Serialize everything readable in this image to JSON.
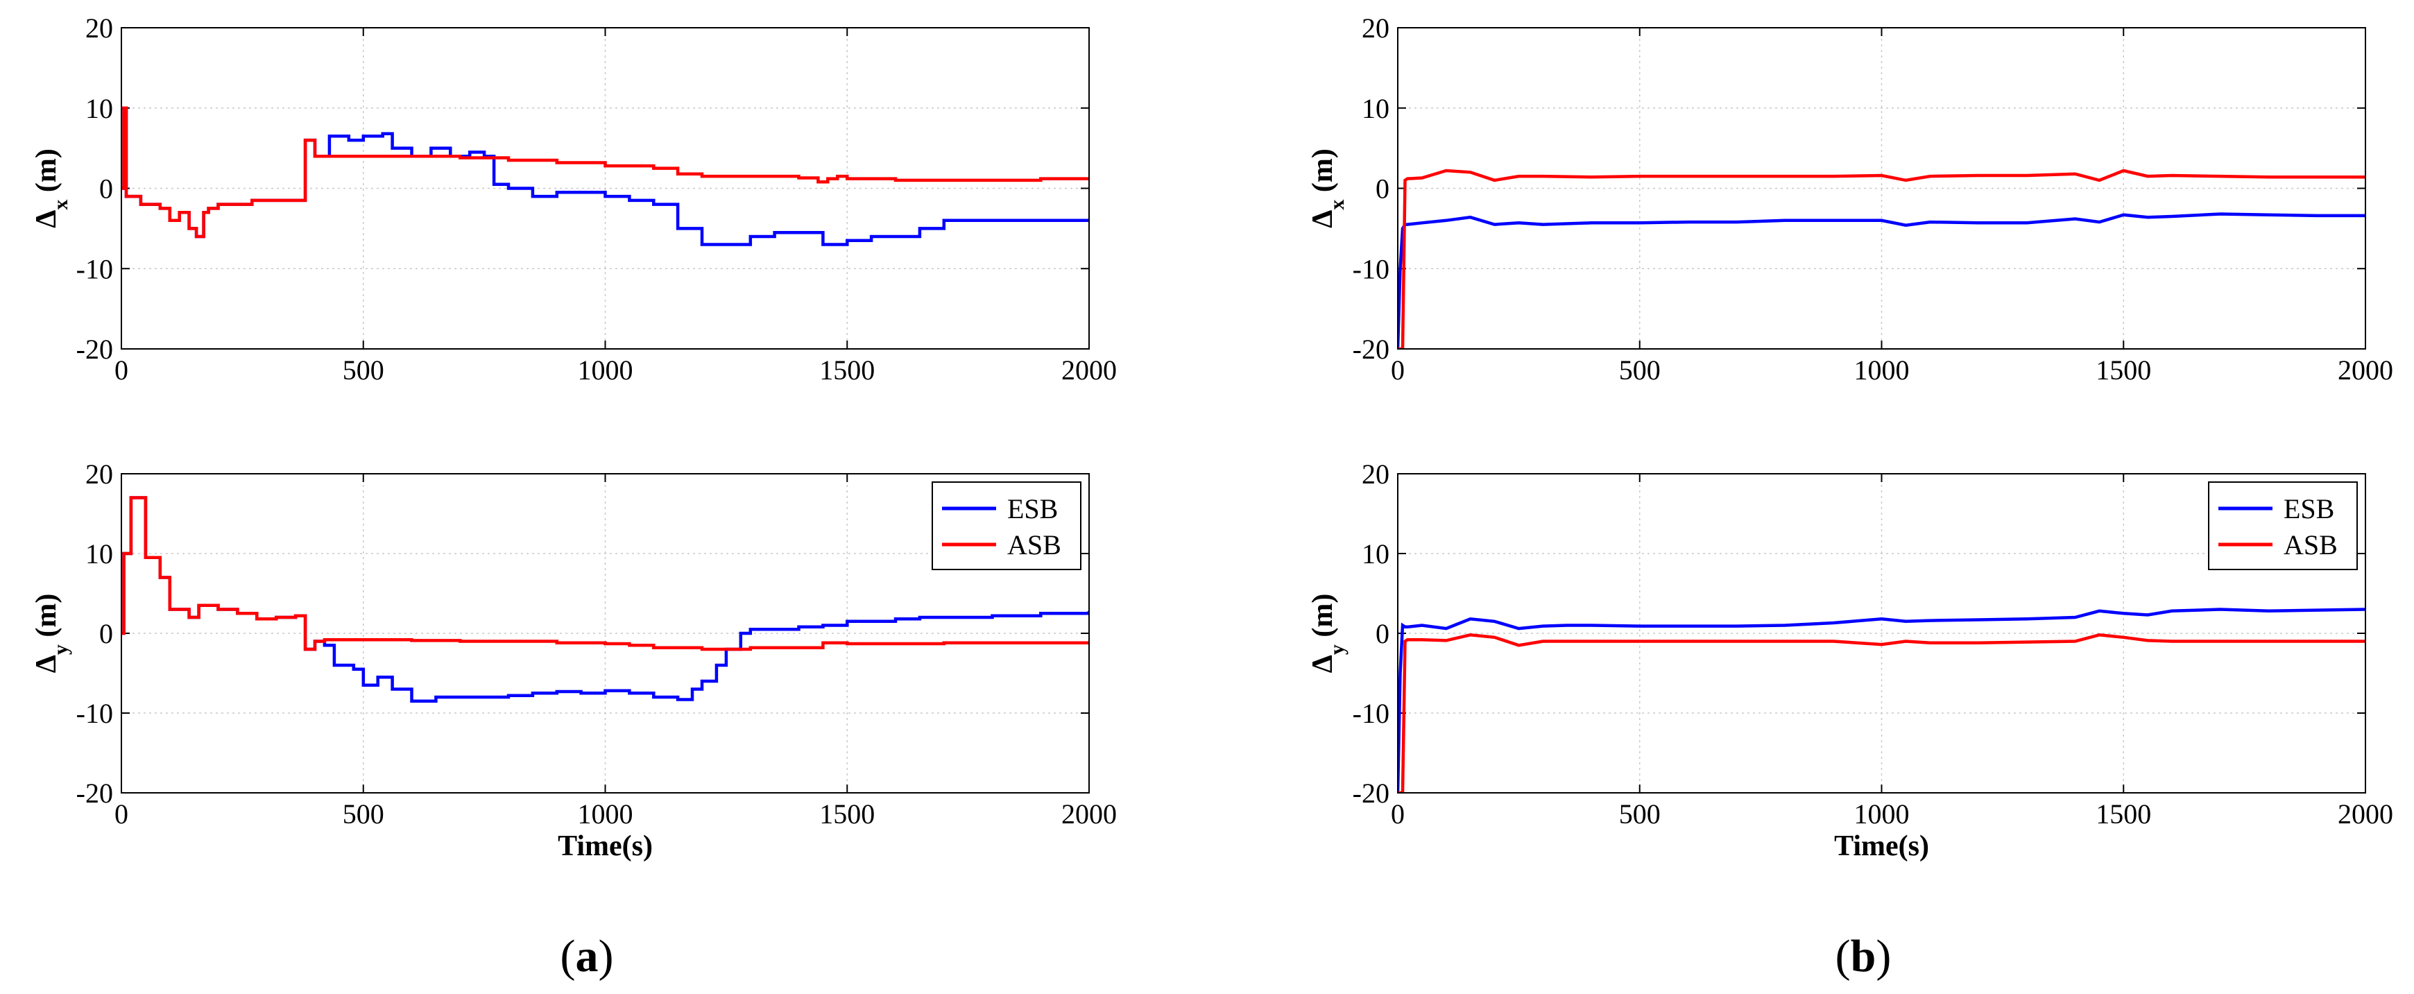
{
  "panels": [
    {
      "label_open": "(",
      "label_letter": "a",
      "label_close": ")"
    },
    {
      "label_open": "(",
      "label_letter": "b",
      "label_close": ")"
    }
  ],
  "colors": {
    "ESB": "#0000ff",
    "ASB": "#ff0000"
  },
  "chart_data": [
    {
      "id": "a-top",
      "type": "line",
      "ylabel": {
        "sym": "Δ",
        "sub": "x",
        "unit": " (m)"
      },
      "xlabel": "",
      "xlim": [
        0,
        2000
      ],
      "ylim": [
        -20,
        20
      ],
      "xticks": [
        "0",
        "500",
        "1000",
        "1500",
        "2000"
      ],
      "yticks": [
        "20",
        "10",
        "0",
        "-10",
        "-20"
      ],
      "xtick_values": [
        0,
        500,
        1000,
        1500,
        2000
      ],
      "ytick_values": [
        20,
        10,
        0,
        -10,
        -20
      ],
      "grid": true,
      "legend": null,
      "series": [
        {
          "name": "ESB",
          "step": true,
          "x": [
            0,
            5,
            10,
            20,
            40,
            60,
            80,
            100,
            120,
            140,
            155,
            170,
            180,
            200,
            240,
            270,
            300,
            340,
            380,
            400,
            430,
            470,
            500,
            540,
            560,
            600,
            640,
            680,
            720,
            750,
            770,
            800,
            850,
            900,
            950,
            1000,
            1050,
            1100,
            1150,
            1200,
            1250,
            1300,
            1350,
            1400,
            1450,
            1500,
            1550,
            1600,
            1650,
            1700,
            1800,
            1900,
            2000
          ],
          "y": [
            0,
            10,
            -1,
            -1,
            -2,
            -2,
            -2.5,
            -4,
            -3,
            -5,
            -6,
            -3,
            -2.5,
            -2,
            -2,
            -1.5,
            -1.5,
            -1.5,
            6,
            4,
            6.5,
            6,
            6.5,
            6.8,
            5,
            4,
            5,
            4,
            4.5,
            4,
            0.5,
            0,
            -1,
            -0.5,
            -0.5,
            -1,
            -1.5,
            -2,
            -5,
            -7,
            -7,
            -6,
            -5.5,
            -5.5,
            -7,
            -6.5,
            -6,
            -6,
            -5,
            -4,
            -4,
            -4,
            -3.8
          ]
        },
        {
          "name": "ASB",
          "step": true,
          "x": [
            0,
            5,
            10,
            20,
            40,
            60,
            80,
            100,
            120,
            140,
            155,
            170,
            180,
            200,
            240,
            270,
            300,
            340,
            380,
            400,
            430,
            500,
            600,
            700,
            800,
            900,
            1000,
            1100,
            1150,
            1200,
            1300,
            1400,
            1440,
            1460,
            1480,
            1500,
            1600,
            1700,
            1800,
            1900,
            2000
          ],
          "y": [
            0,
            10,
            -1,
            -1,
            -2,
            -2,
            -2.5,
            -4,
            -3,
            -5,
            -6,
            -3,
            -2.5,
            -2,
            -2,
            -1.5,
            -1.5,
            -1.5,
            6,
            4,
            4,
            4,
            4,
            3.8,
            3.5,
            3.2,
            2.8,
            2.5,
            1.8,
            1.5,
            1.5,
            1.3,
            0.8,
            1.2,
            1.5,
            1.2,
            1,
            1,
            1,
            1.2,
            1.3
          ]
        }
      ]
    },
    {
      "id": "a-bottom",
      "type": "line",
      "ylabel": {
        "sym": "Δ",
        "sub": "y",
        "unit": " (m)"
      },
      "xlabel": "Time(s)",
      "xlim": [
        0,
        2000
      ],
      "ylim": [
        -20,
        20
      ],
      "xticks": [
        "0",
        "500",
        "1000",
        "1500",
        "2000"
      ],
      "yticks": [
        "20",
        "10",
        "0",
        "-10",
        "-20"
      ],
      "xtick_values": [
        0,
        500,
        1000,
        1500,
        2000
      ],
      "ytick_values": [
        20,
        10,
        0,
        -10,
        -20
      ],
      "grid": true,
      "legend": "top-right",
      "series": [
        {
          "name": "ESB",
          "step": true,
          "x": [
            0,
            5,
            20,
            50,
            80,
            100,
            120,
            140,
            160,
            180,
            200,
            240,
            280,
            320,
            360,
            380,
            400,
            420,
            440,
            480,
            500,
            530,
            560,
            600,
            650,
            700,
            800,
            850,
            900,
            950,
            1000,
            1050,
            1100,
            1150,
            1180,
            1200,
            1230,
            1250,
            1280,
            1300,
            1350,
            1400,
            1450,
            1500,
            1550,
            1600,
            1650,
            1700,
            1800,
            1900,
            2000
          ],
          "y": [
            0,
            10,
            17,
            9.5,
            7,
            3,
            3,
            2,
            3.5,
            3.5,
            3,
            2.5,
            1.8,
            2,
            2.2,
            -2,
            -1,
            -1.5,
            -4,
            -4.5,
            -6.5,
            -5.5,
            -7,
            -8.5,
            -8,
            -8,
            -7.8,
            -7.5,
            -7.3,
            -7.5,
            -7.2,
            -7.5,
            -8,
            -8.3,
            -7,
            -6,
            -4,
            -2,
            0,
            0.5,
            0.5,
            0.8,
            1,
            1.5,
            1.5,
            1.8,
            2,
            2,
            2.2,
            2.5,
            2.8
          ]
        },
        {
          "name": "ASB",
          "step": true,
          "x": [
            0,
            5,
            20,
            50,
            80,
            100,
            120,
            140,
            160,
            180,
            200,
            240,
            280,
            320,
            360,
            380,
            400,
            420,
            500,
            600,
            700,
            800,
            900,
            1000,
            1050,
            1100,
            1150,
            1200,
            1300,
            1400,
            1450,
            1500,
            1600,
            1700,
            1800,
            1900,
            2000
          ],
          "y": [
            0,
            10,
            17,
            9.5,
            7,
            3,
            3,
            2,
            3.5,
            3.5,
            3,
            2.5,
            1.8,
            2,
            2.2,
            -2,
            -1,
            -0.8,
            -0.8,
            -0.9,
            -1,
            -1,
            -1.2,
            -1.3,
            -1.5,
            -1.8,
            -1.8,
            -2,
            -1.8,
            -1.8,
            -1.2,
            -1.3,
            -1.3,
            -1.2,
            -1.2,
            -1.2,
            -1.1
          ]
        }
      ]
    },
    {
      "id": "b-top",
      "type": "line",
      "ylabel": {
        "sym": "Δ",
        "sub": "x",
        "unit": " (m)"
      },
      "xlabel": "",
      "xlim": [
        0,
        2000
      ],
      "ylim": [
        -20,
        20
      ],
      "xticks": [
        "0",
        "500",
        "1000",
        "1500",
        "2000"
      ],
      "yticks": [
        "20",
        "10",
        "0",
        "-10",
        "-20"
      ],
      "xtick_values": [
        0,
        500,
        1000,
        1500,
        2000
      ],
      "ytick_values": [
        20,
        10,
        0,
        -10,
        -20
      ],
      "grid": true,
      "legend": null,
      "series": [
        {
          "name": "ESB",
          "step": false,
          "x": [
            0,
            5,
            10,
            15,
            20,
            50,
            100,
            150,
            200,
            250,
            300,
            400,
            500,
            600,
            700,
            800,
            900,
            1000,
            1050,
            1100,
            1200,
            1300,
            1400,
            1450,
            1500,
            1550,
            1600,
            1700,
            1800,
            1900,
            2000
          ],
          "y": [
            -20,
            -10,
            -5,
            -4.5,
            -4.5,
            -4.3,
            -4,
            -3.6,
            -4.5,
            -4.3,
            -4.5,
            -4.3,
            -4.3,
            -4.2,
            -4.2,
            -4,
            -4,
            -4,
            -4.6,
            -4.2,
            -4.3,
            -4.3,
            -3.8,
            -4.2,
            -3.3,
            -3.6,
            -3.5,
            -3.2,
            -3.3,
            -3.4,
            -3.4
          ]
        },
        {
          "name": "ASB",
          "step": false,
          "x": [
            0,
            5,
            10,
            15,
            20,
            50,
            100,
            150,
            200,
            250,
            300,
            400,
            500,
            600,
            700,
            800,
            900,
            1000,
            1050,
            1100,
            1200,
            1300,
            1400,
            1450,
            1500,
            1550,
            1600,
            1700,
            1800,
            1900,
            2000
          ],
          "y": [
            -20,
            -20,
            -20,
            1,
            1.2,
            1.3,
            2.2,
            2,
            1,
            1.5,
            1.5,
            1.4,
            1.5,
            1.5,
            1.5,
            1.5,
            1.5,
            1.6,
            1,
            1.5,
            1.6,
            1.6,
            1.8,
            1,
            2.2,
            1.5,
            1.6,
            1.5,
            1.4,
            1.4,
            1.4
          ]
        }
      ]
    },
    {
      "id": "b-bottom",
      "type": "line",
      "ylabel": {
        "sym": "Δ",
        "sub": "y",
        "unit": " (m)"
      },
      "xlabel": "Time(s)",
      "xlim": [
        0,
        2000
      ],
      "ylim": [
        -20,
        20
      ],
      "xticks": [
        "0",
        "500",
        "1000",
        "1500",
        "2000"
      ],
      "yticks": [
        "20",
        "10",
        "0",
        "-10",
        "-20"
      ],
      "xtick_values": [
        0,
        500,
        1000,
        1500,
        2000
      ],
      "ytick_values": [
        20,
        10,
        0,
        -10,
        -20
      ],
      "grid": true,
      "legend": "top-right",
      "series": [
        {
          "name": "ESB",
          "step": false,
          "x": [
            0,
            5,
            10,
            15,
            20,
            50,
            100,
            150,
            200,
            250,
            300,
            350,
            400,
            500,
            600,
            700,
            800,
            900,
            1000,
            1050,
            1100,
            1200,
            1300,
            1400,
            1450,
            1500,
            1550,
            1600,
            1700,
            1800,
            1900,
            2000
          ],
          "y": [
            -20,
            -5,
            1,
            0.8,
            0.8,
            1,
            0.6,
            1.8,
            1.5,
            0.6,
            0.9,
            1,
            1,
            0.9,
            0.9,
            0.9,
            1,
            1.3,
            1.8,
            1.5,
            1.6,
            1.7,
            1.8,
            2,
            2.8,
            2.5,
            2.3,
            2.8,
            3,
            2.8,
            2.9,
            3
          ]
        },
        {
          "name": "ASB",
          "step": false,
          "x": [
            0,
            5,
            10,
            15,
            20,
            50,
            100,
            150,
            200,
            250,
            300,
            350,
            400,
            500,
            600,
            700,
            800,
            900,
            1000,
            1050,
            1100,
            1200,
            1300,
            1400,
            1450,
            1500,
            1550,
            1600,
            1700,
            1800,
            1900,
            2000
          ],
          "y": [
            -20,
            -20,
            -20,
            -1,
            -0.8,
            -0.8,
            -0.9,
            -0.2,
            -0.5,
            -1.5,
            -1,
            -1,
            -1,
            -1,
            -1,
            -1,
            -1,
            -1,
            -1.4,
            -1,
            -1.2,
            -1.2,
            -1.1,
            -1,
            -0.2,
            -0.5,
            -0.9,
            -1,
            -1,
            -1,
            -1,
            -1
          ]
        }
      ]
    }
  ]
}
